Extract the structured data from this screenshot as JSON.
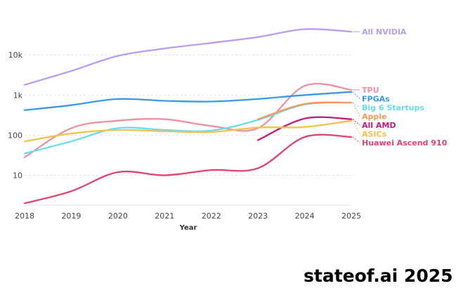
{
  "chart_data": {
    "type": "line",
    "y_scale": "log",
    "ylim": [
      1.8,
      70000
    ],
    "xlim": [
      2018,
      2025
    ],
    "xlabel": "Year",
    "xticks": [
      "2018",
      "2019",
      "2020",
      "2021",
      "2022",
      "2023",
      "2024",
      "2025"
    ],
    "yticks": [
      {
        "value": 10,
        "label": "10"
      },
      {
        "value": 100,
        "label": "100"
      },
      {
        "value": 1000,
        "label": "1k"
      },
      {
        "value": 10000,
        "label": "10k"
      }
    ],
    "grid": "horizontal-dashed",
    "series": [
      {
        "name": "All NVIDIA",
        "color": "#b79cf0",
        "x": [
          2018,
          2019,
          2020,
          2021,
          2022,
          2023,
          2024,
          2025
        ],
        "values": [
          1800,
          4000,
          9500,
          14500,
          20000,
          28000,
          44000,
          38000
        ]
      },
      {
        "name": "TPU",
        "color": "#f0909e",
        "x": [
          2018,
          2019,
          2020,
          2021,
          2022,
          2023,
          2024,
          2025
        ],
        "values": [
          28,
          150,
          230,
          250,
          170,
          150,
          1700,
          1350
        ]
      },
      {
        "name": "FPGAs",
        "color": "#3a98e8",
        "x": [
          2018,
          2019,
          2020,
          2021,
          2022,
          2023,
          2024,
          2025
        ],
        "values": [
          420,
          560,
          800,
          720,
          690,
          800,
          1000,
          1200
        ]
      },
      {
        "name": "Big 6 Startups",
        "color": "#66dcf0",
        "x": [
          2018,
          2019,
          2020,
          2021,
          2022,
          2023,
          2024,
          2025
        ],
        "values": [
          35,
          70,
          150,
          135,
          130,
          240,
          580,
          650
        ]
      },
      {
        "name": "Apple",
        "color": "#f39a5a",
        "x": [
          2023,
          2024,
          2025
        ],
        "values": [
          250,
          600,
          650
        ]
      },
      {
        "name": "All AMD",
        "color": "#c41a82",
        "x": [
          2023,
          2024,
          2025
        ],
        "values": [
          75,
          260,
          250
        ]
      },
      {
        "name": "ASICs",
        "color": "#f4c14a",
        "x": [
          2018,
          2019,
          2020,
          2021,
          2022,
          2023,
          2024,
          2025
        ],
        "values": [
          70,
          110,
          135,
          125,
          120,
          155,
          160,
          230
        ]
      },
      {
        "name": "Huawei Ascend 910",
        "color": "#e0436e",
        "x": [
          2018,
          2019,
          2020,
          2021,
          2022,
          2023,
          2024,
          2025
        ],
        "values": [
          2,
          4,
          12,
          10,
          13.5,
          15,
          90,
          90
        ]
      }
    ]
  },
  "watermark": "stateof.ai 2025"
}
